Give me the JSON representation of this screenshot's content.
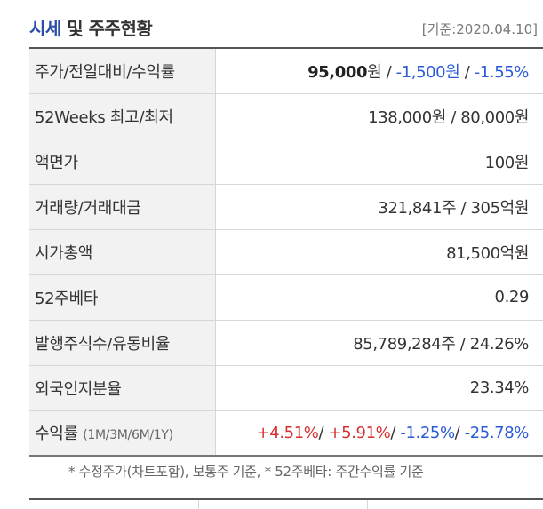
{
  "header": {
    "title_accent": "시세",
    "title_rest": " 및 주주현황",
    "base_date": "[기준:2020.04.10]"
  },
  "rows": {
    "price": {
      "label": "주가/전일대비/수익률",
      "price": "95,000",
      "price_unit": "원",
      "sep1": " / ",
      "change": "-1,500원",
      "sep2": " / ",
      "change_pct": "-1.55%"
    },
    "week52": {
      "label": "52Weeks 최고/최저",
      "value": "138,000원 / 80,000원"
    },
    "par": {
      "label": "액면가",
      "value": "100원"
    },
    "volume": {
      "label": "거래량/거래대금",
      "value": "321,841주 / 305억원"
    },
    "marketcap": {
      "label": "시가총액",
      "value": "81,500억원"
    },
    "beta": {
      "label": "52주베타",
      "value": "0.29"
    },
    "shares": {
      "label": "발행주식수/유동비율",
      "value": "85,789,284주 / 24.26%"
    },
    "foreign": {
      "label": "외국인지분율",
      "value": "23.34%"
    },
    "returns": {
      "label": "수익률",
      "period": "(1M/3M/6M/1Y)",
      "r1m": "+4.51%",
      "s1": "/ ",
      "r3m": "+5.91%",
      "s2": "/ ",
      "r6m": "-1.25%",
      "s3": "/ ",
      "r1y": "-25.78%"
    }
  },
  "footnote": "* 수정주가(차트포함), 보통주 기준, * 52주베타: 주간수익률 기준",
  "colors": {
    "accent": "#2b4fa6",
    "down": "#2a5bd7",
    "up": "#d63131",
    "label_bg": "#f2f2f2"
  }
}
